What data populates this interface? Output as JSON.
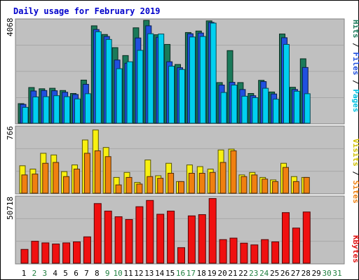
{
  "chart_data": [
    {
      "type": "bar",
      "title": "Daily usage for February 2019",
      "categories": [
        "1",
        "2",
        "3",
        "4",
        "5",
        "6",
        "7",
        "8",
        "9",
        "10",
        "11",
        "12",
        "13",
        "14",
        "15",
        "16",
        "17",
        "18",
        "19",
        "20",
        "21",
        "22",
        "23",
        "24",
        "25",
        "26",
        "27",
        "28",
        "29",
        "30",
        "31"
      ],
      "weekend_days": [
        "2",
        "3",
        "9",
        "10",
        "16",
        "17",
        "23",
        "24",
        "30",
        "31"
      ],
      "ymax_label": "4068",
      "ymax": 4068,
      "legend": [
        "Hits",
        "Files",
        "Pages"
      ],
      "series": [
        {
          "name": "Hits",
          "color": "#1a7a5a",
          "values": [
            790,
            1440,
            1390,
            1410,
            1320,
            1200,
            1740,
            3930,
            3580,
            3050,
            2730,
            3850,
            4150,
            3570,
            3180,
            2370,
            3660,
            3720,
            4130,
            1640,
            2930,
            1640,
            1200,
            1730,
            1260,
            3600,
            1450,
            2600,
            0,
            0,
            0
          ]
        },
        {
          "name": "Files",
          "color": "#2050e0",
          "values": [
            760,
            1300,
            1320,
            1310,
            1250,
            1160,
            1570,
            3780,
            3500,
            2550,
            2420,
            3440,
            3930,
            3470,
            2480,
            2240,
            3610,
            3640,
            4070,
            1540,
            1650,
            1360,
            1110,
            1680,
            1180,
            3450,
            1360,
            2250,
            0,
            0,
            0
          ]
        },
        {
          "name": "Pages",
          "color": "#00d0f0",
          "values": [
            640,
            1060,
            1070,
            1110,
            1070,
            980,
            1190,
            3690,
            3380,
            2200,
            2480,
            2940,
            3610,
            3600,
            2300,
            2170,
            3480,
            3500,
            4040,
            1240,
            1540,
            1090,
            1030,
            1410,
            970,
            3180,
            1290,
            1190,
            0,
            0,
            0
          ]
        }
      ]
    },
    {
      "type": "bar",
      "categories": [
        "1",
        "2",
        "3",
        "4",
        "5",
        "6",
        "7",
        "8",
        "9",
        "10",
        "11",
        "12",
        "13",
        "14",
        "15",
        "16",
        "17",
        "18",
        "19",
        "20",
        "21",
        "22",
        "23",
        "24",
        "25",
        "26",
        "27",
        "28",
        "29",
        "30",
        "31"
      ],
      "ymax_label": "766",
      "ymax": 766,
      "legend": [
        "Visits",
        "Sites"
      ],
      "series": [
        {
          "name": "Visits",
          "color": "#f8f010",
          "values": [
            330,
            290,
            480,
            460,
            260,
            340,
            640,
            760,
            550,
            190,
            250,
            130,
            400,
            210,
            360,
            140,
            340,
            320,
            290,
            520,
            530,
            220,
            250,
            190,
            160,
            360,
            200,
            190,
            0,
            0,
            0
          ]
        },
        {
          "name": "Sites",
          "color": "#f08010",
          "values": [
            220,
            230,
            360,
            370,
            200,
            290,
            480,
            510,
            440,
            100,
            190,
            110,
            200,
            180,
            240,
            140,
            240,
            240,
            250,
            370,
            510,
            200,
            220,
            170,
            140,
            310,
            140,
            190,
            0,
            0,
            0
          ]
        }
      ]
    },
    {
      "type": "bar",
      "categories": [
        "1",
        "2",
        "3",
        "4",
        "5",
        "6",
        "7",
        "8",
        "9",
        "10",
        "11",
        "12",
        "13",
        "14",
        "15",
        "16",
        "17",
        "18",
        "19",
        "20",
        "21",
        "22",
        "23",
        "24",
        "25",
        "26",
        "27",
        "28",
        "29",
        "30",
        "31"
      ],
      "ymax_label": "50718",
      "ymax": 50718,
      "legend": [
        "KBytes"
      ],
      "series": [
        {
          "name": "KBytes",
          "color": "#f01010",
          "values": [
            11000,
            17500,
            16200,
            15300,
            16200,
            17000,
            21000,
            47500,
            41500,
            37000,
            34800,
            45000,
            50000,
            39000,
            41500,
            12400,
            37700,
            38700,
            51500,
            18800,
            20000,
            16000,
            14600,
            18800,
            17000,
            40300,
            28000,
            40800,
            0,
            0,
            0
          ]
        }
      ]
    }
  ]
}
